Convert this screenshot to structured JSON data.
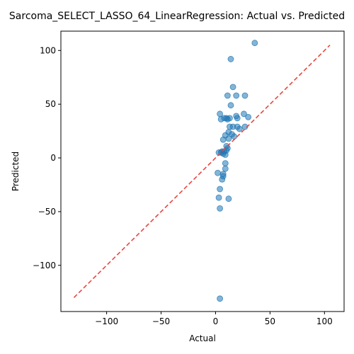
{
  "chart_data": {
    "type": "scatter",
    "title": "Sarcoma_SELECT_LASSO_64_LinearRegression: Actual vs. Predicted",
    "xlabel": "Actual",
    "ylabel": "Predicted",
    "xlim": [
      -142,
      118
    ],
    "ylim": [
      -143,
      118
    ],
    "xticks": [
      -100,
      -50,
      0,
      50,
      100
    ],
    "yticks": [
      -100,
      -50,
      0,
      50,
      100
    ],
    "xtick_labels": [
      "−100",
      "−50",
      "0",
      "50",
      "100"
    ],
    "ytick_labels": [
      "−100",
      "−50",
      "0",
      "50",
      "100"
    ],
    "grid": false,
    "legend": false,
    "marker_color": "#1f77b4",
    "marker_alpha": 0.55,
    "reference_line": {
      "style": "dashed",
      "color": "#e8463f",
      "x": [
        -130,
        105
      ],
      "y": [
        -130,
        105
      ]
    },
    "points": [
      {
        "x": 36,
        "y": 107
      },
      {
        "x": 14,
        "y": 92
      },
      {
        "x": 16,
        "y": 66
      },
      {
        "x": 11,
        "y": 58
      },
      {
        "x": 27,
        "y": 58
      },
      {
        "x": 19,
        "y": 58
      },
      {
        "x": 14,
        "y": 49
      },
      {
        "x": 4,
        "y": 41
      },
      {
        "x": 26,
        "y": 41
      },
      {
        "x": 19,
        "y": 39
      },
      {
        "x": 30,
        "y": 38
      },
      {
        "x": 13,
        "y": 37
      },
      {
        "x": 8,
        "y": 37
      },
      {
        "x": 10,
        "y": 37
      },
      {
        "x": 20,
        "y": 37
      },
      {
        "x": 5,
        "y": 36
      },
      {
        "x": 11,
        "y": 36
      },
      {
        "x": 13,
        "y": 29
      },
      {
        "x": 16,
        "y": 29
      },
      {
        "x": 20,
        "y": 29
      },
      {
        "x": 27,
        "y": 29
      },
      {
        "x": 22,
        "y": 27
      },
      {
        "x": 12,
        "y": 24
      },
      {
        "x": 15,
        "y": 22
      },
      {
        "x": 9,
        "y": 21
      },
      {
        "x": 17,
        "y": 20
      },
      {
        "x": 12,
        "y": 18
      },
      {
        "x": 7,
        "y": 17
      },
      {
        "x": 10,
        "y": 11
      },
      {
        "x": 11,
        "y": 9
      },
      {
        "x": 10,
        "y": 7
      },
      {
        "x": 6,
        "y": 6
      },
      {
        "x": 8,
        "y": 6
      },
      {
        "x": 3,
        "y": 5
      },
      {
        "x": 5,
        "y": 5
      },
      {
        "x": 7,
        "y": 4
      },
      {
        "x": 9,
        "y": 3
      },
      {
        "x": 9,
        "y": -5
      },
      {
        "x": 9,
        "y": -10
      },
      {
        "x": 2,
        "y": -14
      },
      {
        "x": 7,
        "y": -15
      },
      {
        "x": 7,
        "y": -17
      },
      {
        "x": 6,
        "y": -20
      },
      {
        "x": 4,
        "y": -29
      },
      {
        "x": 3,
        "y": -37
      },
      {
        "x": 12,
        "y": -38
      },
      {
        "x": 4,
        "y": -47
      },
      {
        "x": 4,
        "y": -131
      }
    ]
  }
}
